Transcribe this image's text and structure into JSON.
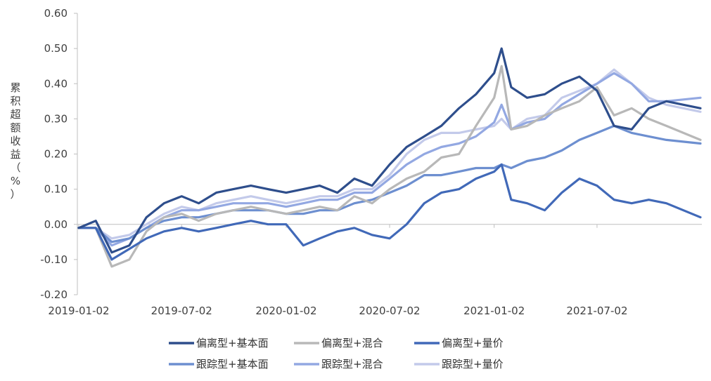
{
  "chart_data": {
    "type": "line",
    "title": "",
    "xlabel": "",
    "ylabel": "累积超额收益（%）",
    "ylim": [
      -0.2,
      0.6
    ],
    "yticks": [
      "-0.20",
      "-0.10",
      "0.00",
      "0.10",
      "0.20",
      "0.30",
      "0.40",
      "0.50",
      "0.60"
    ],
    "x": [
      "2019-01-02",
      "2019-02-01",
      "2019-03-01",
      "2019-04-01",
      "2019-05-01",
      "2019-06-01",
      "2019-07-02",
      "2019-08-01",
      "2019-09-01",
      "2019-10-01",
      "2019-11-01",
      "2019-12-01",
      "2020-01-02",
      "2020-02-01",
      "2020-03-01",
      "2020-04-01",
      "2020-05-01",
      "2020-06-01",
      "2020-07-02",
      "2020-08-01",
      "2020-09-01",
      "2020-10-01",
      "2020-11-01",
      "2020-12-01",
      "2021-01-02",
      "2021-01-15",
      "2021-02-01",
      "2021-03-01",
      "2021-04-01",
      "2021-05-01",
      "2021-06-01",
      "2021-07-02",
      "2021-08-01",
      "2021-09-01",
      "2021-10-01",
      "2021-11-01",
      "2021-12-31"
    ],
    "xticks": [
      "2019-01-02",
      "2019-07-02",
      "2020-01-02",
      "2020-07-02",
      "2021-01-02",
      "2021-07-02"
    ],
    "series": [
      {
        "name": "偏离型+基本面",
        "color": "#2E4E8C",
        "values": [
          -0.01,
          0.01,
          -0.08,
          -0.06,
          0.02,
          0.06,
          0.08,
          0.06,
          0.09,
          0.1,
          0.11,
          0.1,
          0.09,
          0.1,
          0.11,
          0.09,
          0.13,
          0.11,
          0.17,
          0.22,
          0.25,
          0.28,
          0.33,
          0.37,
          0.43,
          0.5,
          0.39,
          0.36,
          0.37,
          0.4,
          0.42,
          0.38,
          0.28,
          0.27,
          0.33,
          0.35,
          0.33
        ]
      },
      {
        "name": "偏离型+混合",
        "color": "#B8B8B8",
        "values": [
          -0.01,
          -0.01,
          -0.12,
          -0.1,
          -0.02,
          0.02,
          0.03,
          0.01,
          0.03,
          0.04,
          0.05,
          0.04,
          0.03,
          0.04,
          0.05,
          0.04,
          0.08,
          0.06,
          0.1,
          0.13,
          0.15,
          0.19,
          0.2,
          0.28,
          0.36,
          0.45,
          0.27,
          0.28,
          0.31,
          0.33,
          0.35,
          0.39,
          0.31,
          0.33,
          0.3,
          0.28,
          0.24
        ]
      },
      {
        "name": "偏离型+量价",
        "color": "#4169B8",
        "values": [
          -0.01,
          -0.01,
          -0.1,
          -0.07,
          -0.04,
          -0.02,
          -0.01,
          -0.02,
          -0.01,
          0.0,
          0.01,
          0.0,
          0.0,
          -0.06,
          -0.04,
          -0.02,
          -0.01,
          -0.03,
          -0.04,
          0.0,
          0.06,
          0.09,
          0.1,
          0.13,
          0.15,
          0.17,
          0.07,
          0.06,
          0.04,
          0.09,
          0.13,
          0.11,
          0.07,
          0.06,
          0.07,
          0.06,
          0.02
        ]
      },
      {
        "name": "跟踪型+基本面",
        "color": "#6D8FD0",
        "values": [
          -0.01,
          -0.01,
          -0.05,
          -0.04,
          -0.01,
          0.01,
          0.02,
          0.02,
          0.03,
          0.04,
          0.04,
          0.04,
          0.03,
          0.03,
          0.04,
          0.04,
          0.06,
          0.07,
          0.09,
          0.11,
          0.14,
          0.14,
          0.15,
          0.16,
          0.16,
          0.17,
          0.16,
          0.18,
          0.19,
          0.21,
          0.24,
          0.26,
          0.28,
          0.26,
          0.25,
          0.24,
          0.23
        ]
      },
      {
        "name": "跟踪型+混合",
        "color": "#93A8E2",
        "values": [
          -0.01,
          -0.01,
          -0.06,
          -0.04,
          -0.01,
          0.02,
          0.04,
          0.04,
          0.05,
          0.06,
          0.06,
          0.06,
          0.05,
          0.06,
          0.07,
          0.07,
          0.09,
          0.09,
          0.13,
          0.17,
          0.2,
          0.22,
          0.23,
          0.25,
          0.29,
          0.34,
          0.27,
          0.29,
          0.3,
          0.34,
          0.37,
          0.4,
          0.43,
          0.4,
          0.35,
          0.35,
          0.36
        ]
      },
      {
        "name": "跟踪型+量价",
        "color": "#C3CAEA",
        "values": [
          -0.01,
          -0.01,
          -0.04,
          -0.03,
          0.0,
          0.03,
          0.05,
          0.04,
          0.06,
          0.07,
          0.08,
          0.07,
          0.06,
          0.07,
          0.08,
          0.08,
          0.1,
          0.1,
          0.14,
          0.2,
          0.24,
          0.26,
          0.26,
          0.27,
          0.28,
          0.3,
          0.27,
          0.3,
          0.31,
          0.36,
          0.38,
          0.4,
          0.44,
          0.4,
          0.36,
          0.34,
          0.32
        ]
      }
    ],
    "legend_position": "bottom",
    "grid": false
  }
}
